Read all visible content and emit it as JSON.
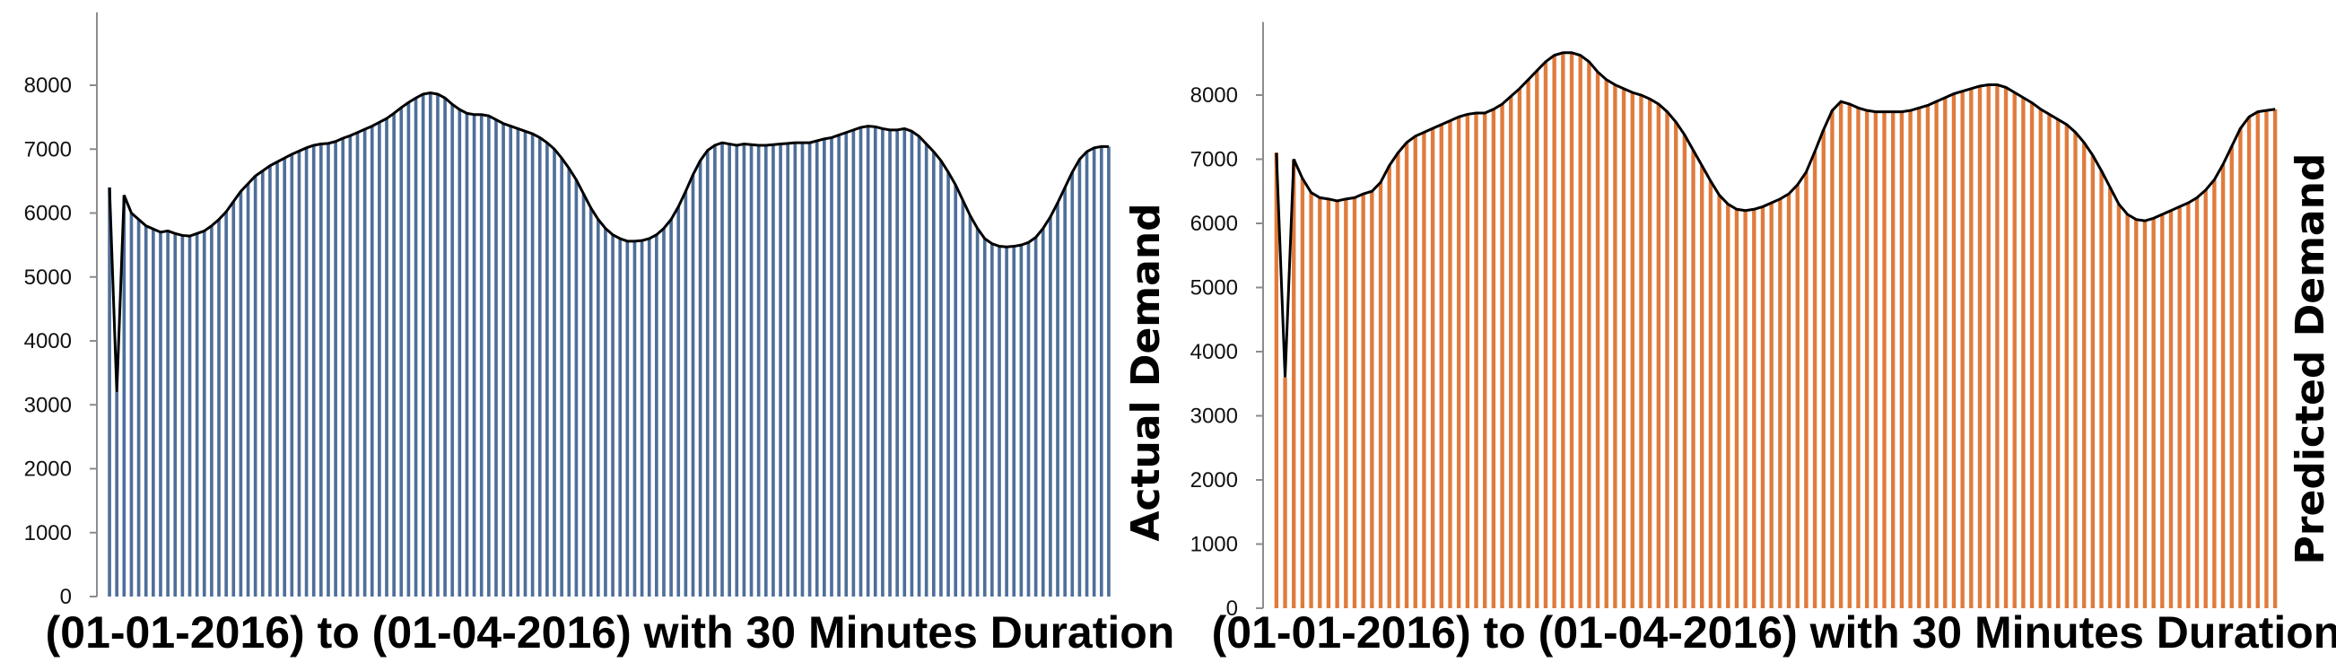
{
  "chart_data": [
    {
      "type": "bar",
      "xlabel": "(01-01-2016) to (01-04-2016) with 30 Minutes Duration",
      "ylabel": "Actual Demand",
      "ylim": [
        0,
        9000
      ],
      "yticks": [
        0,
        1000,
        2000,
        3000,
        4000,
        5000,
        6000,
        7000,
        8000
      ],
      "colors": {
        "bar": "#4f6f9a",
        "line": "#000000"
      },
      "grid": false,
      "legend": "none",
      "values": [
        6400,
        3200,
        6280,
        6000,
        5900,
        5800,
        5750,
        5700,
        5720,
        5680,
        5650,
        5640,
        5680,
        5720,
        5800,
        5900,
        6020,
        6180,
        6340,
        6460,
        6580,
        6660,
        6740,
        6800,
        6860,
        6920,
        6970,
        7020,
        7060,
        7080,
        7090,
        7120,
        7170,
        7210,
        7260,
        7310,
        7360,
        7420,
        7480,
        7560,
        7650,
        7730,
        7800,
        7860,
        7880,
        7860,
        7800,
        7700,
        7620,
        7560,
        7540,
        7540,
        7520,
        7460,
        7400,
        7360,
        7320,
        7280,
        7240,
        7180,
        7100,
        7000,
        6860,
        6700,
        6520,
        6300,
        6080,
        5900,
        5760,
        5660,
        5600,
        5560,
        5560,
        5570,
        5600,
        5660,
        5760,
        5900,
        6100,
        6340,
        6600,
        6820,
        6980,
        7060,
        7100,
        7080,
        7060,
        7080,
        7070,
        7060,
        7060,
        7070,
        7080,
        7090,
        7100,
        7100,
        7100,
        7130,
        7160,
        7180,
        7220,
        7260,
        7300,
        7340,
        7360,
        7350,
        7320,
        7300,
        7300,
        7320,
        7280,
        7200,
        7080,
        6960,
        6820,
        6640,
        6440,
        6200,
        5960,
        5760,
        5600,
        5520,
        5480,
        5470,
        5480,
        5500,
        5540,
        5620,
        5760,
        5940,
        6160,
        6400,
        6640,
        6840,
        6960,
        7020,
        7040,
        7040
      ]
    },
    {
      "type": "bar",
      "xlabel": "(01-01-2016) to (01-04-2016) with 30 Minutes Duration",
      "ylabel": "Predicted Demand",
      "ylim": [
        0,
        9000
      ],
      "yticks": [
        0,
        1000,
        2000,
        3000,
        4000,
        5000,
        6000,
        7000,
        8000
      ],
      "colors": {
        "bar": "#e07b3c",
        "line": "#000000"
      },
      "grid": false,
      "legend": "none",
      "values": [
        7100,
        3600,
        7000,
        6700,
        6480,
        6400,
        6380,
        6350,
        6380,
        6400,
        6460,
        6500,
        6640,
        6900,
        7100,
        7260,
        7360,
        7420,
        7480,
        7540,
        7600,
        7660,
        7700,
        7720,
        7720,
        7780,
        7860,
        7980,
        8100,
        8240,
        8380,
        8520,
        8620,
        8660,
        8660,
        8620,
        8520,
        8360,
        8240,
        8160,
        8100,
        8040,
        8000,
        7940,
        7860,
        7740,
        7580,
        7380,
        7140,
        6900,
        6660,
        6440,
        6300,
        6220,
        6200,
        6220,
        6260,
        6320,
        6380,
        6460,
        6600,
        6800,
        7120,
        7460,
        7760,
        7900,
        7860,
        7800,
        7760,
        7740,
        7740,
        7740,
        7740,
        7760,
        7800,
        7840,
        7900,
        7960,
        8020,
        8060,
        8100,
        8140,
        8160,
        8160,
        8120,
        8040,
        7960,
        7880,
        7780,
        7700,
        7620,
        7540,
        7420,
        7260,
        7060,
        6820,
        6560,
        6300,
        6140,
        6060,
        6040,
        6080,
        6140,
        6200,
        6260,
        6320,
        6400,
        6520,
        6680,
        6920,
        7200,
        7480,
        7660,
        7740,
        7760,
        7780
      ]
    }
  ]
}
